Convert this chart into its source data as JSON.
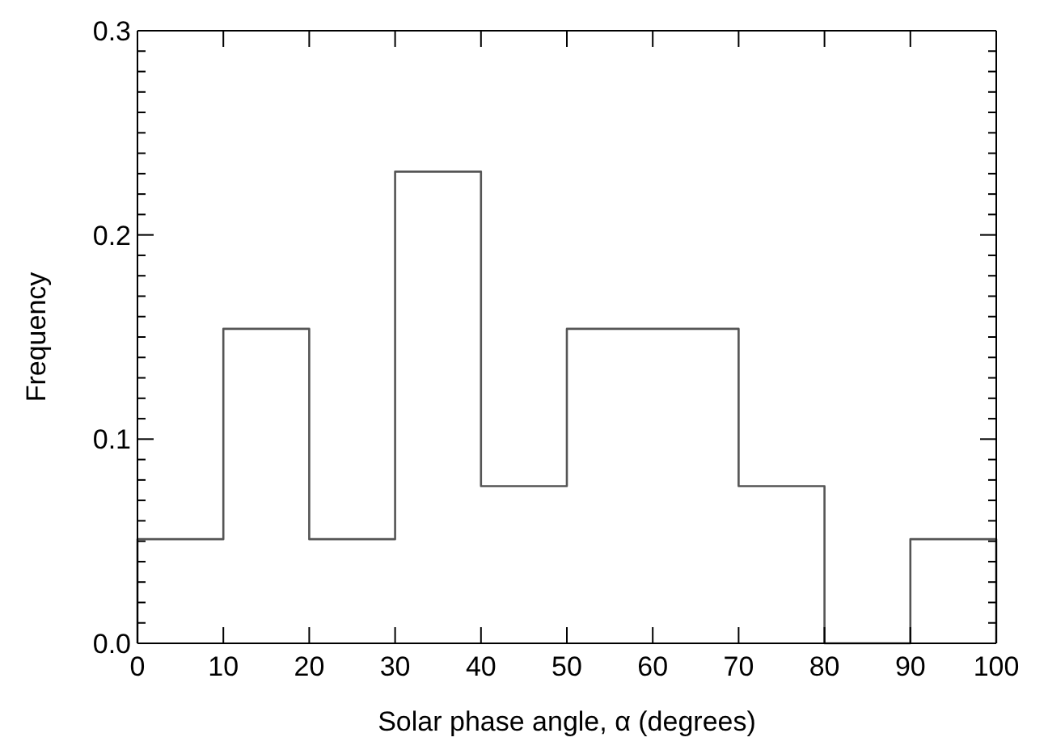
{
  "chart_data": {
    "type": "histogram",
    "xlabel": "Solar phase angle, α (degrees)",
    "ylabel": "Frequency",
    "bins": [
      0,
      10,
      20,
      30,
      40,
      50,
      60,
      70,
      80,
      90,
      100
    ],
    "values": [
      0.051,
      0.154,
      0.051,
      0.231,
      0.077,
      0.154,
      0.154,
      0.077,
      0,
      0.051
    ],
    "color": "#555555",
    "xlim": [
      0,
      100
    ],
    "xticks": [
      0,
      10,
      20,
      30,
      40,
      50,
      60,
      70,
      80,
      90,
      100
    ],
    "ylim": [
      0,
      0.3
    ],
    "yticks": [
      {
        "value": 0,
        "label": "0.0"
      },
      {
        "value": 0.01,
        "label": null
      },
      {
        "value": 0.02,
        "label": null
      },
      {
        "value": 0.03,
        "label": null
      },
      {
        "value": 0.04,
        "label": null
      },
      {
        "value": 0.05,
        "label": null
      },
      {
        "value": 0.06,
        "label": null
      },
      {
        "value": 0.07,
        "label": null
      },
      {
        "value": 0.08,
        "label": null
      },
      {
        "value": 0.09,
        "label": null
      },
      0.1,
      {
        "value": 0.11,
        "label": null
      },
      {
        "value": 0.12,
        "label": null
      },
      {
        "value": 0.13,
        "label": null
      },
      {
        "value": 0.14,
        "label": null
      },
      {
        "value": 0.15,
        "label": null
      },
      {
        "value": 0.16,
        "label": null
      },
      {
        "value": 0.17,
        "label": null
      },
      {
        "value": 0.18,
        "label": null
      },
      {
        "value": 0.19,
        "label": null
      },
      0.2,
      {
        "value": 0.21,
        "label": null
      },
      {
        "value": 0.22,
        "label": null
      },
      {
        "value": 0.23,
        "label": null
      },
      {
        "value": 0.24,
        "label": null
      },
      {
        "value": 0.25,
        "label": null
      },
      {
        "value": 0.26,
        "label": null
      },
      {
        "value": 0.27,
        "label": null
      },
      {
        "value": 0.28,
        "label": null
      },
      {
        "value": 0.29,
        "label": null
      },
      0.3
    ],
    "grid": false,
    "legend": false
  }
}
